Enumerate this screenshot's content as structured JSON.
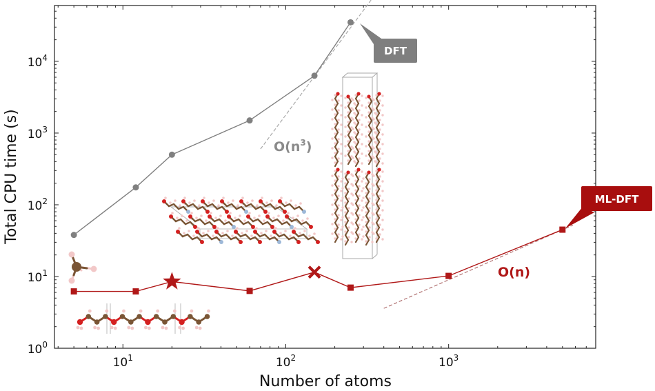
{
  "chart_data": {
    "type": "scatter",
    "xscale": "log",
    "yscale": "log",
    "xlabel": "Number of atoms",
    "ylabel": "Total CPU time (s)",
    "xlim": [
      3.8,
      8000
    ],
    "ylim": [
      1,
      60000
    ],
    "xticks": [
      {
        "value": 10,
        "base": "10",
        "exp": "1"
      },
      {
        "value": 100,
        "base": "10",
        "exp": "2"
      },
      {
        "value": 1000,
        "base": "10",
        "exp": "3"
      }
    ],
    "yticks": [
      {
        "value": 1,
        "base": "10",
        "exp": "0"
      },
      {
        "value": 10,
        "base": "10",
        "exp": "1"
      },
      {
        "value": 100,
        "base": "10",
        "exp": "2"
      },
      {
        "value": 1000,
        "base": "10",
        "exp": "3"
      },
      {
        "value": 10000,
        "base": "10",
        "exp": "4"
      }
    ],
    "grid": false,
    "series": [
      {
        "name": "DFT",
        "color": "#808080",
        "marker": "circle",
        "x": [
          5,
          12,
          20,
          60,
          150,
          250
        ],
        "y": [
          38,
          175,
          500,
          1500,
          6300,
          35000
        ]
      },
      {
        "name": "ML-DFT",
        "color": "#b01818",
        "marker": "square",
        "x": [
          5,
          12,
          20,
          60,
          150,
          250,
          1000,
          5000
        ],
        "y": [
          6.2,
          6.2,
          8.5,
          6.3,
          11.5,
          7.0,
          10.2,
          45
        ],
        "special_markers": [
          {
            "index": 2,
            "shape": "star"
          },
          {
            "index": 4,
            "shape": "x"
          }
        ]
      }
    ],
    "scaling_guides": [
      {
        "label": "O(n³)",
        "color": "#aaaaaa",
        "x": [
          70,
          360
        ],
        "y": [
          600,
          90000
        ]
      },
      {
        "label": "O(n)",
        "color": "#b07070",
        "x": [
          400,
          5800
        ],
        "y": [
          3.6,
          52
        ]
      }
    ],
    "annotations": {
      "dft_callout": "DFT",
      "mldft_callout": "ML-DFT",
      "on3_label": "O(n",
      "on3_sup": "3",
      "on3_close": ")",
      "on_label": "O(n)"
    }
  },
  "colors": {
    "dft": "#808080",
    "mldft": "#b01818",
    "carbon": "#7a5535",
    "oxygen": "#d42020",
    "hydrogen": "#f2c8c8",
    "nitrogen": "#9db8d8"
  },
  "molecule_images": [
    "methane",
    "linear-chain",
    "crystal-cluster",
    "layered-crystal-cell"
  ]
}
